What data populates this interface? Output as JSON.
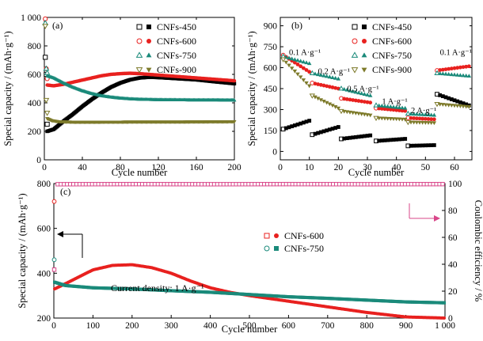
{
  "colors": {
    "CNFs-450": "#000000",
    "CNFs-600": "#e8211f",
    "CNFs-750": "#1a8a7a",
    "CNFs-900": "#7d7a2a",
    "efficiency": "#d9478a"
  },
  "chart_data": [
    {
      "panel": "(a)",
      "type": "scatter",
      "xlabel": "Cycle number",
      "ylabel": "Special capacity / (mAh·g⁻¹)",
      "xlim": [
        0,
        200
      ],
      "ylim": [
        0,
        1000
      ],
      "xticks": [
        0,
        40,
        80,
        120,
        160,
        200
      ],
      "yticks": [
        0,
        200,
        400,
        600,
        800,
        1000
      ],
      "xticklabels": [
        "0",
        "40",
        "80",
        "120",
        "160",
        "200"
      ],
      "yticklabels": [
        "0",
        "200",
        "400",
        "600",
        "800",
        "1 000"
      ],
      "legend_position": "top-right",
      "series": [
        {
          "name": "CNFs-450",
          "marker": "square",
          "open_points": [
            [
              1,
              720
            ],
            [
              2,
              600
            ],
            [
              3,
              250
            ]
          ],
          "curve": [
            [
              3,
              200
            ],
            [
              10,
              215
            ],
            [
              20,
              270
            ],
            [
              30,
              320
            ],
            [
              40,
              375
            ],
            [
              50,
              425
            ],
            [
              60,
              470
            ],
            [
              70,
              510
            ],
            [
              80,
              540
            ],
            [
              90,
              562
            ],
            [
              100,
              575
            ],
            [
              110,
              580
            ],
            [
              120,
              578
            ],
            [
              140,
              570
            ],
            [
              160,
              562
            ],
            [
              180,
              548
            ],
            [
              200,
              535
            ]
          ]
        },
        {
          "name": "CNFs-600",
          "marker": "circle",
          "open_points": [
            [
              1,
              990
            ],
            [
              2,
              640
            ],
            [
              3,
              570
            ]
          ],
          "curve": [
            [
              3,
              525
            ],
            [
              10,
              520
            ],
            [
              20,
              530
            ],
            [
              30,
              545
            ],
            [
              40,
              560
            ],
            [
              50,
              575
            ],
            [
              60,
              590
            ],
            [
              70,
              600
            ],
            [
              80,
              605
            ],
            [
              90,
              608
            ],
            [
              100,
              605
            ],
            [
              120,
              595
            ],
            [
              140,
              585
            ],
            [
              160,
              575
            ],
            [
              180,
              565
            ],
            [
              200,
              555
            ]
          ]
        },
        {
          "name": "CNFs-750",
          "marker": "triangle-up",
          "open_points": [
            [
              1,
              960
            ],
            [
              2,
              640
            ],
            [
              3,
              610
            ]
          ],
          "curve": [
            [
              3,
              590
            ],
            [
              10,
              575
            ],
            [
              20,
              540
            ],
            [
              30,
              510
            ],
            [
              40,
              485
            ],
            [
              50,
              465
            ],
            [
              60,
              450
            ],
            [
              70,
              440
            ],
            [
              80,
              433
            ],
            [
              90,
              428
            ],
            [
              100,
              425
            ],
            [
              120,
              422
            ],
            [
              140,
              421
            ],
            [
              160,
              420
            ],
            [
              180,
              420
            ],
            [
              200,
              419
            ]
          ]
        },
        {
          "name": "CNFs-900",
          "marker": "triangle-down",
          "open_points": [
            [
              1,
              940
            ],
            [
              2,
              420
            ],
            [
              3,
              330
            ]
          ],
          "curve": [
            [
              3,
              290
            ],
            [
              8,
              275
            ],
            [
              15,
              268
            ],
            [
              30,
              265
            ],
            [
              60,
              265
            ],
            [
              100,
              266
            ],
            [
              140,
              266
            ],
            [
              170,
              267
            ],
            [
              200,
              268
            ]
          ]
        }
      ]
    },
    {
      "panel": "(b)",
      "type": "scatter",
      "xlabel": "Cycle number",
      "ylabel": "Special capacity / (mAh·g⁻¹)",
      "xlim": [
        0,
        66
      ],
      "ylim": [
        -60,
        960
      ],
      "xticks": [
        0,
        10,
        20,
        30,
        40,
        50,
        60
      ],
      "yticks": [
        0,
        150,
        300,
        450,
        600,
        750,
        900
      ],
      "xticklabels": [
        "0",
        "10",
        "20",
        "30",
        "40",
        "50",
        "60"
      ],
      "yticklabels": [
        "0",
        "150",
        "300",
        "450",
        "600",
        "750",
        "900"
      ],
      "legend_position": "top-right",
      "rate_labels": [
        {
          "text": "0.1 A·g⁻¹",
          "x": 3,
          "y": 690
        },
        {
          "text": "0.2 A·g⁻¹",
          "x": 13,
          "y": 555
        },
        {
          "text": "0.5 A·g⁻¹",
          "x": 23,
          "y": 430
        },
        {
          "text": "1 A·g⁻¹",
          "x": 35,
          "y": 340
        },
        {
          "text": "2 A·g⁻¹",
          "x": 45,
          "y": 275
        },
        {
          "text": "0.1 A·g⁻¹",
          "x": 55,
          "y": 690
        }
      ],
      "series": [
        {
          "name": "CNFs-450",
          "marker": "square",
          "segments": [
            [
              [
                1,
                160
              ],
              [
                10,
                220
              ]
            ],
            [
              [
                11,
                120
              ],
              [
                20,
                175
              ]
            ],
            [
              [
                21,
                90
              ],
              [
                31,
                115
              ]
            ],
            [
              [
                33,
                75
              ],
              [
                43,
                90
              ]
            ],
            [
              [
                44,
                40
              ],
              [
                53,
                45
              ]
            ],
            [
              [
                54,
                410
              ],
              [
                65,
                330
              ]
            ]
          ]
        },
        {
          "name": "CNFs-600",
          "marker": "circle",
          "segments": [
            [
              [
                1,
                690
              ],
              [
                10,
                570
              ]
            ],
            [
              [
                11,
                490
              ],
              [
                20,
                450
              ]
            ],
            [
              [
                21,
                380
              ],
              [
                31,
                350
              ]
            ],
            [
              [
                33,
                310
              ],
              [
                43,
                290
              ]
            ],
            [
              [
                44,
                240
              ],
              [
                53,
                230
              ]
            ],
            [
              [
                54,
                580
              ],
              [
                65,
                610
              ]
            ]
          ]
        },
        {
          "name": "CNFs-750",
          "marker": "triangle-up",
          "segments": [
            [
              [
                1,
                680
              ],
              [
                10,
                630
              ]
            ],
            [
              [
                11,
                560
              ],
              [
                20,
                520
              ]
            ],
            [
              [
                21,
                450
              ],
              [
                31,
                400
              ]
            ],
            [
              [
                33,
                330
              ],
              [
                43,
                310
              ]
            ],
            [
              [
                44,
                270
              ],
              [
                53,
                260
              ]
            ],
            [
              [
                54,
                560
              ],
              [
                65,
                540
              ]
            ]
          ]
        },
        {
          "name": "CNFs-900",
          "marker": "triangle-down",
          "segments": [
            [
              [
                1,
                660
              ],
              [
                10,
                470
              ]
            ],
            [
              [
                11,
                400
              ],
              [
                20,
                310
              ]
            ],
            [
              [
                21,
                290
              ],
              [
                31,
                260
              ]
            ],
            [
              [
                33,
                240
              ],
              [
                43,
                230
              ]
            ],
            [
              [
                44,
                210
              ],
              [
                53,
                205
              ]
            ],
            [
              [
                54,
                340
              ],
              [
                65,
                320
              ]
            ]
          ]
        }
      ]
    },
    {
      "panel": "(c)",
      "type": "scatter",
      "xlabel": "Cycle number",
      "ylabel": "Special capacity / (mAh·g⁻¹)",
      "y2label": "Coulombic efficiency / %",
      "annotation": "Current density: 1 A·g⁻¹",
      "xlim": [
        0,
        1000
      ],
      "ylim": [
        200,
        800
      ],
      "y2lim": [
        0,
        100
      ],
      "xticks": [
        0,
        100,
        200,
        300,
        400,
        500,
        600,
        700,
        800,
        900,
        1000
      ],
      "yticks": [
        200,
        400,
        600,
        800
      ],
      "y2ticks": [
        0,
        20,
        40,
        60,
        80,
        100
      ],
      "xticklabels": [
        "0",
        "100",
        "200",
        "300",
        "400",
        "500",
        "600",
        "700",
        "800",
        "900",
        "1 000"
      ],
      "yticklabels": [
        "200",
        "400",
        "600",
        "800"
      ],
      "y2ticklabels": [
        "0",
        "20",
        "40",
        "60",
        "80",
        "100"
      ],
      "legend_position": "center-right",
      "series": [
        {
          "name": "CNFs-600",
          "marker": "circle",
          "open_points": [
            [
              1,
              720
            ]
          ],
          "curve": [
            [
              2,
              330
            ],
            [
              20,
              345
            ],
            [
              60,
              380
            ],
            [
              100,
              415
            ],
            [
              150,
              435
            ],
            [
              200,
              438
            ],
            [
              250,
              425
            ],
            [
              300,
              400
            ],
            [
              350,
              365
            ],
            [
              400,
              335
            ],
            [
              450,
              315
            ],
            [
              500,
              300
            ],
            [
              600,
              275
            ],
            [
              700,
              250
            ],
            [
              800,
              225
            ],
            [
              900,
              205
            ],
            [
              1000,
              200
            ]
          ]
        },
        {
          "name": "CNFs-750",
          "marker": "circle",
          "open_points": [
            [
              1,
              460
            ]
          ],
          "curve": [
            [
              2,
              360
            ],
            [
              30,
              345
            ],
            [
              100,
              335
            ],
            [
              200,
              330
            ],
            [
              300,
              322
            ],
            [
              400,
              315
            ],
            [
              500,
              305
            ],
            [
              600,
              295
            ],
            [
              700,
              288
            ],
            [
              800,
              280
            ],
            [
              900,
              272
            ],
            [
              1000,
              268
            ]
          ]
        }
      ],
      "efficiency": {
        "first_cycle": 36,
        "steady": [
          [
            10,
            99.5
          ],
          [
            200,
            99.6
          ],
          [
            400,
            99.5
          ],
          [
            600,
            99.6
          ],
          [
            800,
            99.5
          ],
          [
            1000,
            99.6
          ]
        ]
      }
    }
  ]
}
